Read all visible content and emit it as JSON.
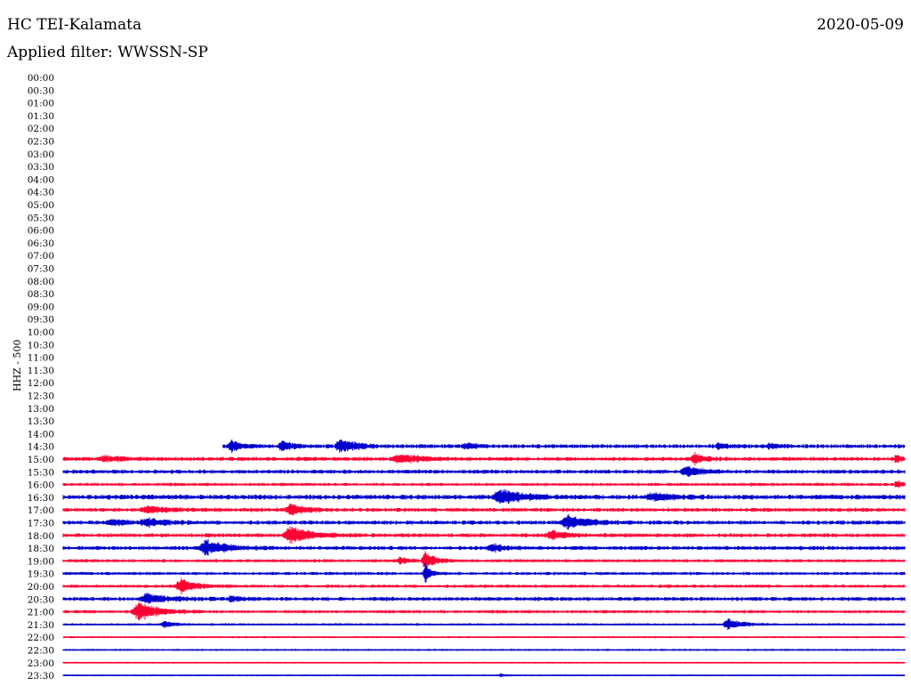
{
  "header": {
    "station": "HC TEI-Kalamata",
    "date": "2020-05-09",
    "filter": "Applied filter: WWSSN-SP"
  },
  "chart_data": {
    "type": "line",
    "title": "HC TEI-Kalamata",
    "ylabel": "HHZ - 500",
    "row_labels": [
      "00:00",
      "00:30",
      "01:00",
      "01:30",
      "02:00",
      "02:30",
      "03:00",
      "03:30",
      "04:00",
      "04:30",
      "05:00",
      "05:30",
      "06:00",
      "06:30",
      "07:00",
      "07:30",
      "08:00",
      "08:30",
      "09:00",
      "09:30",
      "10:00",
      "10:30",
      "11:00",
      "11:30",
      "12:00",
      "12:30",
      "13:00",
      "13:30",
      "14:00",
      "14:30",
      "15:00",
      "15:30",
      "16:00",
      "16:30",
      "17:00",
      "17:30",
      "18:00",
      "18:30",
      "19:00",
      "19:30",
      "20:00",
      "20:30",
      "21:00",
      "21:30",
      "22:00",
      "22:30",
      "23:00",
      "23:30"
    ],
    "series_colors": [
      "#ff0033",
      "#0000cc"
    ],
    "traces": [
      {
        "label": "14:30",
        "start_fraction": 0.19,
        "amplitude": 2.5,
        "events": [
          [
            0.2,
            7,
            0.01
          ],
          [
            0.26,
            6,
            0.01
          ],
          [
            0.33,
            9,
            0.015
          ],
          [
            0.48,
            4,
            0.01
          ],
          [
            0.78,
            3,
            0.01
          ],
          [
            0.84,
            3,
            0.01
          ]
        ]
      },
      {
        "label": "15:00",
        "start_fraction": 0,
        "amplitude": 2.5,
        "events": [
          [
            0.05,
            3,
            0.02
          ],
          [
            0.4,
            5,
            0.02
          ],
          [
            0.75,
            6,
            0.01
          ],
          [
            0.99,
            5,
            0.005
          ]
        ]
      },
      {
        "label": "15:30",
        "start_fraction": 0,
        "amplitude": 2.5,
        "events": [
          [
            0.74,
            6,
            0.015
          ]
        ]
      },
      {
        "label": "16:00",
        "start_fraction": 0,
        "amplitude": 2,
        "events": [
          [
            0.99,
            5,
            0.005
          ]
        ]
      },
      {
        "label": "16:30",
        "start_fraction": 0,
        "amplitude": 3,
        "events": [
          [
            0.52,
            9,
            0.02
          ],
          [
            0.7,
            4,
            0.02
          ]
        ]
      },
      {
        "label": "17:00",
        "start_fraction": 0,
        "amplitude": 2.5,
        "events": [
          [
            0.1,
            4,
            0.02
          ],
          [
            0.27,
            6,
            0.015
          ]
        ]
      },
      {
        "label": "17:30",
        "start_fraction": 0,
        "amplitude": 2.5,
        "events": [
          [
            0.06,
            3,
            0.02
          ],
          [
            0.1,
            4,
            0.02
          ],
          [
            0.6,
            8,
            0.02
          ]
        ]
      },
      {
        "label": "18:00",
        "start_fraction": 0,
        "amplitude": 2.5,
        "events": [
          [
            0.27,
            10,
            0.02
          ],
          [
            0.58,
            5,
            0.015
          ]
        ]
      },
      {
        "label": "18:30",
        "start_fraction": 0,
        "amplitude": 2.5,
        "events": [
          [
            0.17,
            9,
            0.02
          ],
          [
            0.51,
            4,
            0.015
          ]
        ]
      },
      {
        "label": "19:00",
        "start_fraction": 0,
        "amplitude": 2,
        "events": [
          [
            0.4,
            4,
            0.01
          ],
          [
            0.43,
            10,
            0.01
          ]
        ]
      },
      {
        "label": "19:30",
        "start_fraction": 0,
        "amplitude": 2,
        "events": [
          [
            0.43,
            12,
            0.005
          ]
        ]
      },
      {
        "label": "20:00",
        "start_fraction": 0,
        "amplitude": 2,
        "events": [
          [
            0.14,
            9,
            0.015
          ]
        ]
      },
      {
        "label": "20:30",
        "start_fraction": 0,
        "amplitude": 2.5,
        "events": [
          [
            0.1,
            6,
            0.02
          ],
          [
            0.2,
            3,
            0.01
          ]
        ]
      },
      {
        "label": "21:00",
        "start_fraction": 0,
        "amplitude": 2,
        "events": [
          [
            0.09,
            11,
            0.02
          ]
        ]
      },
      {
        "label": "21:30",
        "start_fraction": 0,
        "amplitude": 1.5,
        "events": [
          [
            0.12,
            4,
            0.01
          ],
          [
            0.79,
            6,
            0.015
          ]
        ]
      },
      {
        "label": "22:00",
        "start_fraction": 0,
        "amplitude": 1.2,
        "events": []
      },
      {
        "label": "22:30",
        "start_fraction": 0,
        "amplitude": 1.2,
        "events": []
      },
      {
        "label": "23:00",
        "start_fraction": 0,
        "amplitude": 1,
        "events": []
      },
      {
        "label": "23:30",
        "start_fraction": 0,
        "amplitude": 1,
        "events": [
          [
            0.52,
            2,
            0.005
          ]
        ]
      }
    ]
  }
}
